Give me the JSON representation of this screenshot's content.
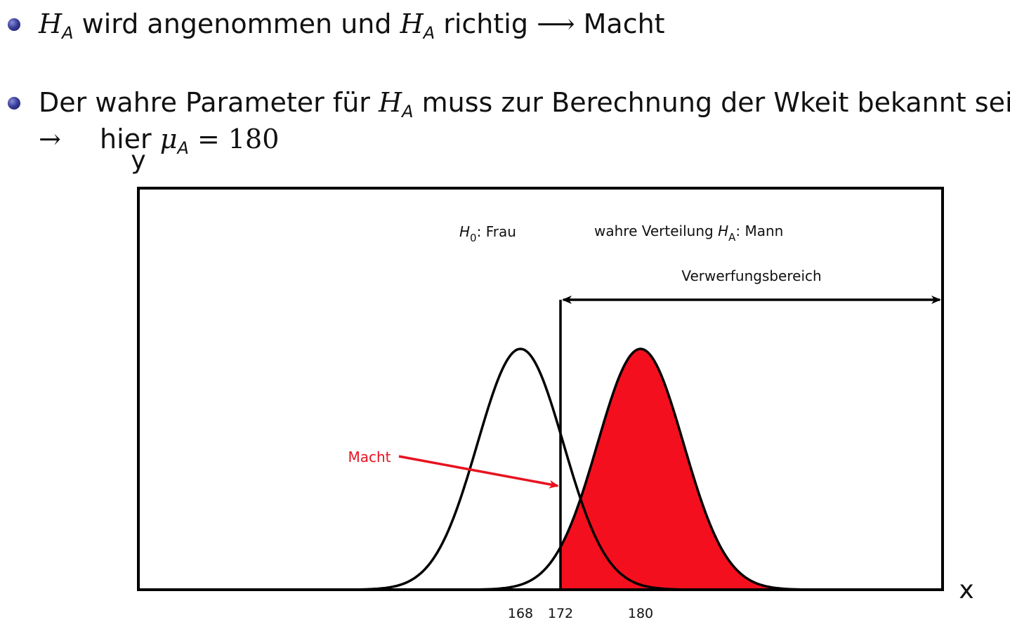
{
  "bullets": [
    {
      "parts": {
        "h": "H",
        "sub": "A",
        "t1": " wird angenommen und ",
        "h2": "H",
        "sub2": "A",
        "t2": " richtig ",
        "arrow": "⟶",
        "t3": " Macht"
      }
    },
    {
      "parts": {
        "t1": "Der wahre Parameter für ",
        "h": "H",
        "sub": "A",
        "t2": " muss zur Berechnung der Wkeit bekannt sein"
      },
      "line2": {
        "arrow": "→",
        "t1": "hier ",
        "mu": "μ",
        "sub": "A",
        "eq": " = 180"
      }
    }
  ],
  "diagram": {
    "y_label": "y",
    "x_label": "x",
    "h0_label": {
      "h": "H",
      "sub": "0",
      "text": ": Frau"
    },
    "ha_label": {
      "pre": "wahre Verteilung ",
      "h": "H",
      "sub": "A",
      "text": ": Mann"
    },
    "reject_label": "Verwerfungsbereich",
    "power_label": "Macht",
    "ticks": [
      "168",
      "172",
      "180"
    ],
    "h0_mean": 168,
    "ha_mean": 180,
    "critical_value": 172,
    "colors": {
      "fill": "#f40f1e",
      "annotation": "#e8121f",
      "line": "#000000"
    }
  }
}
